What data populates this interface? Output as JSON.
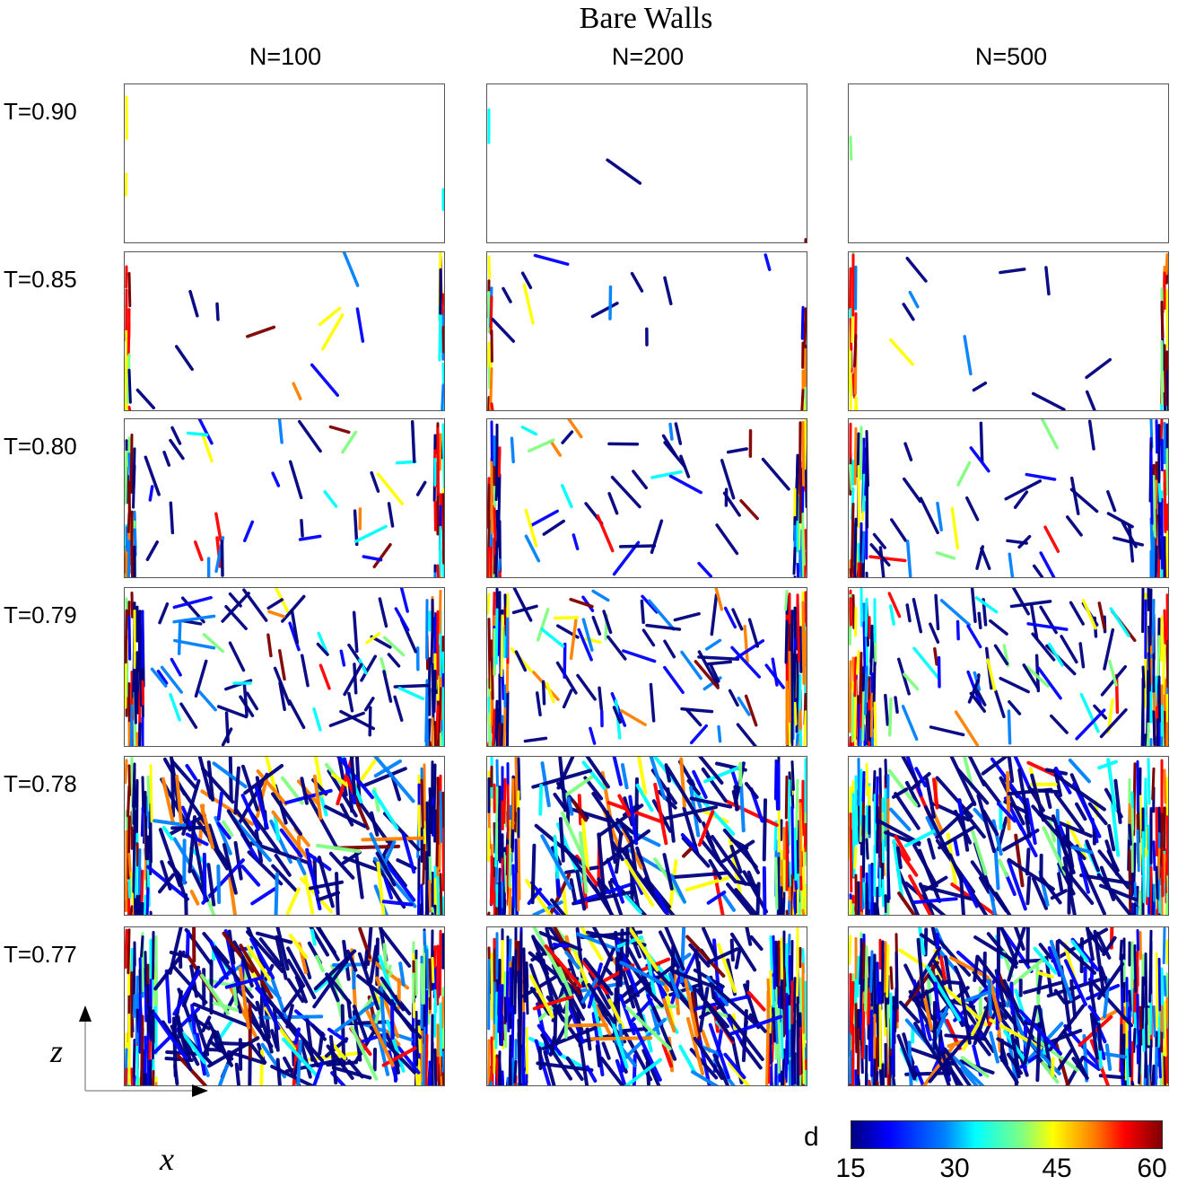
{
  "title": "Bare Walls",
  "columns": [
    {
      "label": "N=100"
    },
    {
      "label": "N=200"
    },
    {
      "label": "N=500"
    }
  ],
  "rows": [
    {
      "label": "T=0.90",
      "fill": 0.05
    },
    {
      "label": "T=0.85",
      "fill": 0.15
    },
    {
      "label": "T=0.80",
      "fill": 0.35
    },
    {
      "label": "T=0.79",
      "fill": 0.5
    },
    {
      "label": "T=0.78",
      "fill": 0.75
    },
    {
      "label": "T=0.77",
      "fill": 0.9
    }
  ],
  "axes": {
    "vertical": "z",
    "horizontal": "x"
  },
  "colorbar": {
    "label": "d",
    "ticks": [
      "15",
      "30",
      "45",
      "60"
    ],
    "colors": [
      "#00007f",
      "#0000ff",
      "#0080ff",
      "#00ffff",
      "#80ff80",
      "#ffff00",
      "#ff8000",
      "#ff0000",
      "#7f0000"
    ]
  }
}
